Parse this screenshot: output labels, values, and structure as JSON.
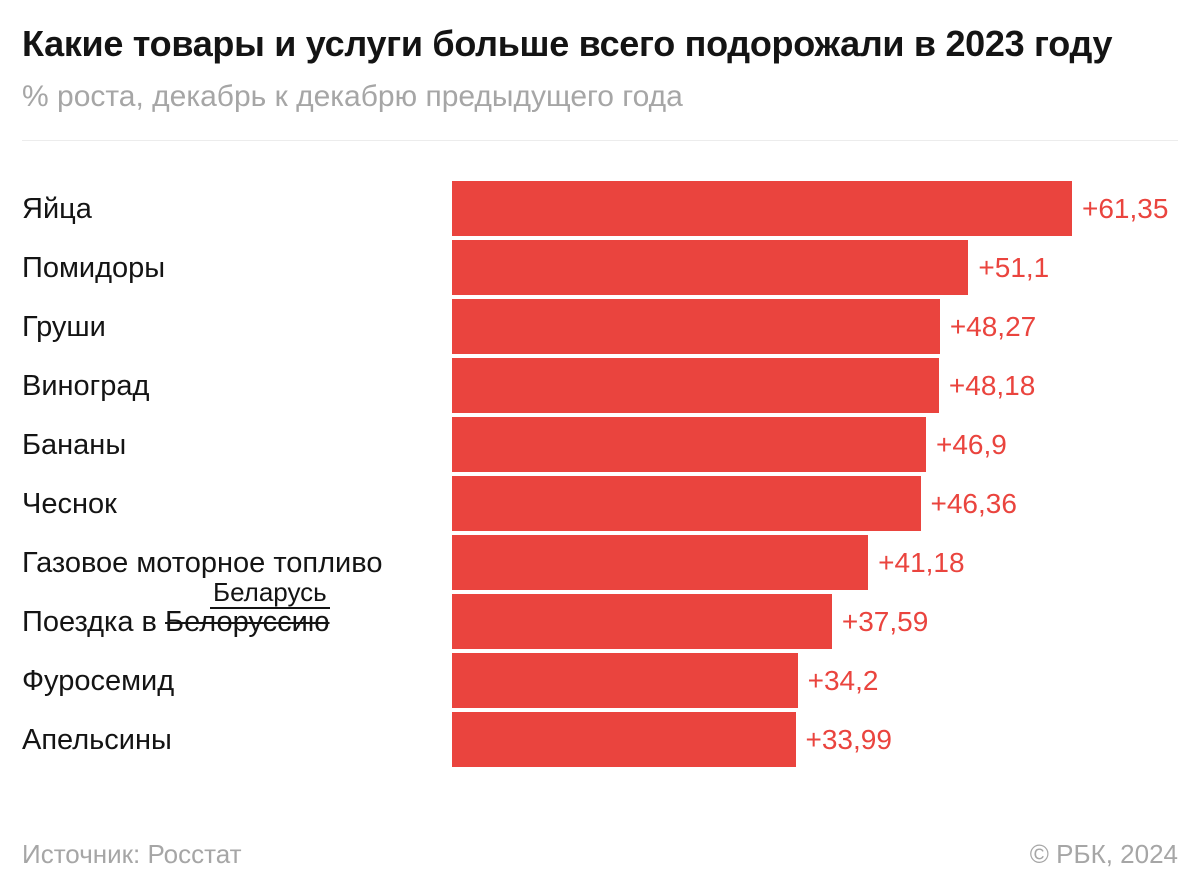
{
  "header": {
    "title": "Какие товары и услуги больше всего подорожали в 2023 году",
    "subtitle": "% роста, декабрь к декабрю предыдущего года"
  },
  "correction": {
    "above": "Беларусь",
    "prefix": "Поездка в ",
    "struck": "Белоруссию"
  },
  "footer": {
    "source": "Источник: Росстат",
    "copyright": "© РБК, 2024"
  },
  "colors": {
    "bar": "#ea443e",
    "value_text": "#ea443e",
    "title_text": "#141414",
    "muted_text": "#a6a6a6"
  },
  "chart_data": {
    "type": "bar",
    "orientation": "horizontal",
    "title": "Какие товары и услуги больше всего подорожали в 2023 году",
    "subtitle": "% роста, декабрь к декабрю предыдущего года",
    "source": "Росстат",
    "legend": "none",
    "grid": "off",
    "xlim": [
      0,
      61.35
    ],
    "categories": [
      "Яйца",
      "Помидоры",
      "Груши",
      "Виноград",
      "Бананы",
      "Чеснок",
      "Газовое моторное топливо",
      "Поездка в Белоруссию",
      "Фуросемид",
      "Апельсины"
    ],
    "values": [
      61.35,
      51.1,
      48.27,
      48.18,
      46.9,
      46.36,
      41.18,
      37.59,
      34.2,
      33.99
    ],
    "value_labels": [
      "+61,35",
      "+51,1",
      "+48,27",
      "+48,18",
      "+46,9",
      "+46,36",
      "+41,18",
      "+37,59",
      "+34,2",
      "+33,99"
    ]
  }
}
